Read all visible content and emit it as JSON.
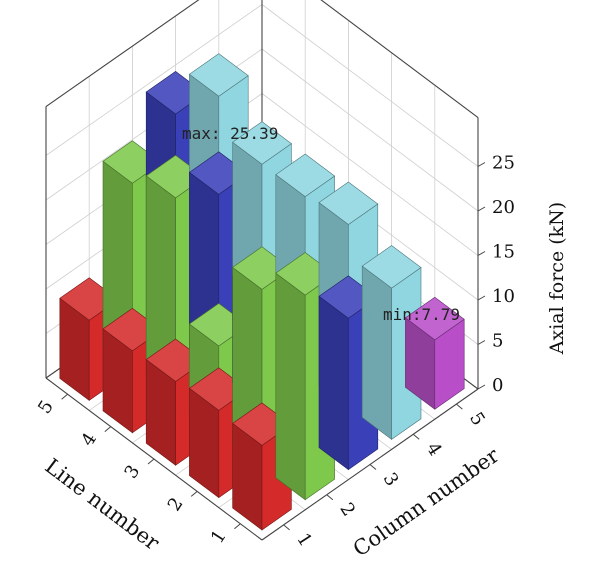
{
  "chart_data": {
    "type": "bar3d",
    "title": "",
    "xlabel": "Line number",
    "ylabel": "Column number",
    "zlabel": "Axial force (kN)",
    "x_ticks": [
      "1",
      "2",
      "3",
      "4",
      "5"
    ],
    "y_ticks": [
      "1",
      "2",
      "3",
      "4",
      "5"
    ],
    "z_ticks": [
      "0",
      "5",
      "10",
      "15",
      "20",
      "25"
    ],
    "zlim": [
      0,
      27
    ],
    "bars": [
      {
        "line": 1,
        "column": 1,
        "value": 9.5,
        "color": "#d42a2a"
      },
      {
        "line": 2,
        "column": 1,
        "value": 9.8,
        "color": "#d42a2a"
      },
      {
        "line": 3,
        "column": 1,
        "value": 9.4,
        "color": "#d42a2a"
      },
      {
        "line": 4,
        "column": 1,
        "value": 9.2,
        "color": "#d42a2a"
      },
      {
        "line": 5,
        "column": 1,
        "value": 9.0,
        "color": "#d42a2a"
      },
      {
        "line": 1,
        "column": 2,
        "value": 23.0,
        "color": "#7ec84c"
      },
      {
        "line": 2,
        "column": 2,
        "value": 20.0,
        "color": "#7ec84c"
      },
      {
        "line": 3,
        "column": 2,
        "value": 10.0,
        "color": "#7ec84c"
      },
      {
        "line": 4,
        "column": 2,
        "value": 23.0,
        "color": "#7ec84c"
      },
      {
        "line": 5,
        "column": 2,
        "value": 21.0,
        "color": "#7ec84c"
      },
      {
        "line": 1,
        "column": 3,
        "value": 17.0,
        "color": "#3a40b8"
      },
      {
        "line": 2,
        "column": 3,
        "value": 11.5,
        "color": "#3a40b8"
      },
      {
        "line": 3,
        "column": 3,
        "value": 12.0,
        "color": "#3a40b8"
      },
      {
        "line": 4,
        "column": 3,
        "value": 20.0,
        "color": "#3a40b8"
      },
      {
        "line": 5,
        "column": 3,
        "value": 25.39,
        "color": "#3a40b8"
      },
      {
        "line": 1,
        "column": 4,
        "value": 17.0,
        "color": "#8fd6e0"
      },
      {
        "line": 2,
        "column": 4,
        "value": 20.5,
        "color": "#8fd6e0"
      },
      {
        "line": 3,
        "column": 4,
        "value": 20.0,
        "color": "#8fd6e0"
      },
      {
        "line": 4,
        "column": 4,
        "value": 20.0,
        "color": "#8fd6e0"
      },
      {
        "line": 5,
        "column": 4,
        "value": 24.0,
        "color": "#8fd6e0"
      },
      {
        "line": 1,
        "column": 5,
        "value": 7.79,
        "color": "#b84fc8"
      }
    ],
    "annotations": [
      {
        "text": "max: 25.39",
        "line": 5,
        "column": 3,
        "value": 25.39
      },
      {
        "text": "min:7.79",
        "line": 1,
        "column": 5,
        "value": 7.79
      }
    ]
  }
}
